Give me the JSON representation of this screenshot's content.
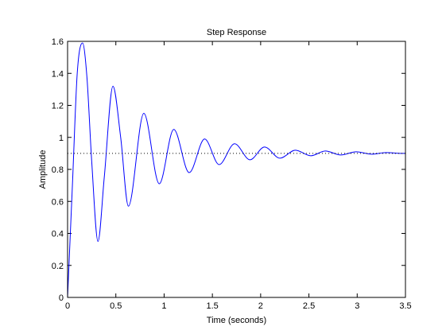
{
  "window": {
    "background": "#ffffff"
  },
  "chart_data": {
    "type": "line",
    "title": "Step Response",
    "xlabel": "Time (seconds)",
    "ylabel": "Amplitude",
    "xlim": [
      0,
      3.5
    ],
    "ylim": [
      0,
      1.6
    ],
    "x_ticks": [
      0,
      0.5,
      1,
      1.5,
      2,
      2.5,
      3,
      3.5
    ],
    "y_ticks": [
      0,
      0.2,
      0.4,
      0.6,
      0.8,
      1,
      1.2,
      1.4,
      1.6
    ],
    "x_tick_labels": [
      "0",
      "0.5",
      "1",
      "1.5",
      "2",
      "2.5",
      "3",
      "3.5"
    ],
    "y_tick_labels": [
      "0",
      "0.2",
      "0.4",
      "0.6",
      "0.8",
      "1",
      "1.2",
      "1.4",
      "1.6"
    ],
    "grid": false,
    "series": [
      {
        "color": "#0000ff",
        "line_style": "solid",
        "x": [
          0,
          0.05,
          0.1,
          0.155,
          0.2,
          0.25,
          0.315,
          0.38,
          0.47,
          0.55,
          0.63,
          0.79,
          0.95,
          1.1,
          1.26,
          1.42,
          1.57,
          1.73,
          1.89,
          2.04,
          2.2,
          2.36,
          2.52,
          2.67,
          2.83,
          2.99,
          3.15,
          3.3,
          3.46,
          3.5
        ],
        "y": [
          0,
          0.7,
          1.4,
          1.59,
          1.38,
          0.85,
          0.35,
          0.75,
          1.32,
          1.0,
          0.57,
          1.15,
          0.71,
          1.05,
          0.78,
          0.99,
          0.83,
          0.96,
          0.86,
          0.94,
          0.87,
          0.92,
          0.885,
          0.915,
          0.89,
          0.91,
          0.895,
          0.905,
          0.9,
          0.9
        ]
      },
      {
        "color": "#000000",
        "line_style": "dotted",
        "x": [
          0,
          3.5
        ],
        "y": [
          0.9,
          0.9
        ]
      }
    ]
  }
}
